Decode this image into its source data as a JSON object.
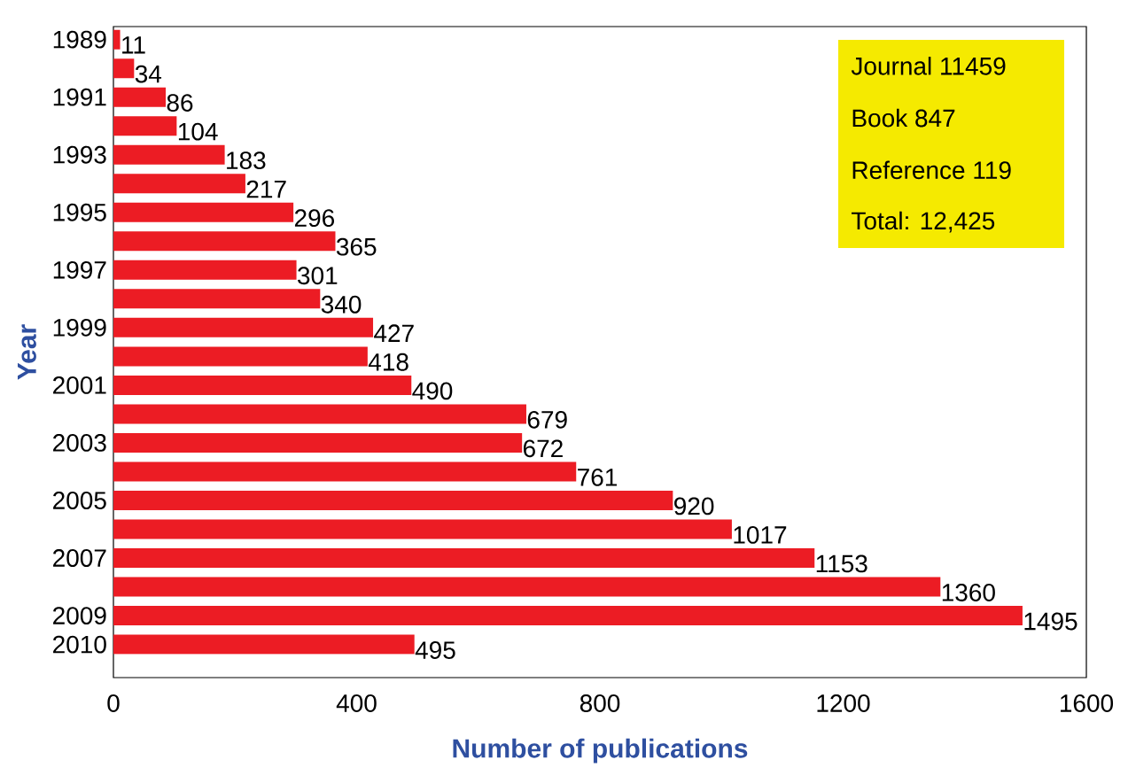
{
  "chart_data": {
    "type": "bar",
    "orientation": "horizontal",
    "xlabel": "Number of publications",
    "ylabel": "Year",
    "categories": [
      "1989",
      null,
      "1991",
      null,
      "1993",
      null,
      "1995",
      null,
      "1997",
      null,
      "1999",
      null,
      "2001",
      null,
      "2003",
      null,
      "2005",
      null,
      "2007",
      null,
      "2009",
      "2010"
    ],
    "values": [
      11,
      34,
      86,
      104,
      183,
      217,
      296,
      365,
      301,
      340,
      427,
      418,
      490,
      679,
      672,
      761,
      920,
      1017,
      1153,
      1360,
      1495,
      495
    ],
    "color": "#ec1c24",
    "data_labels": true,
    "xlim": [
      0,
      1600
    ],
    "xticks": [
      0,
      400,
      800,
      1200,
      1600
    ],
    "grid": false,
    "annotations": [
      "Journal 11459",
      "Book  847",
      "Reference 119",
      "Total: 12,425"
    ]
  }
}
